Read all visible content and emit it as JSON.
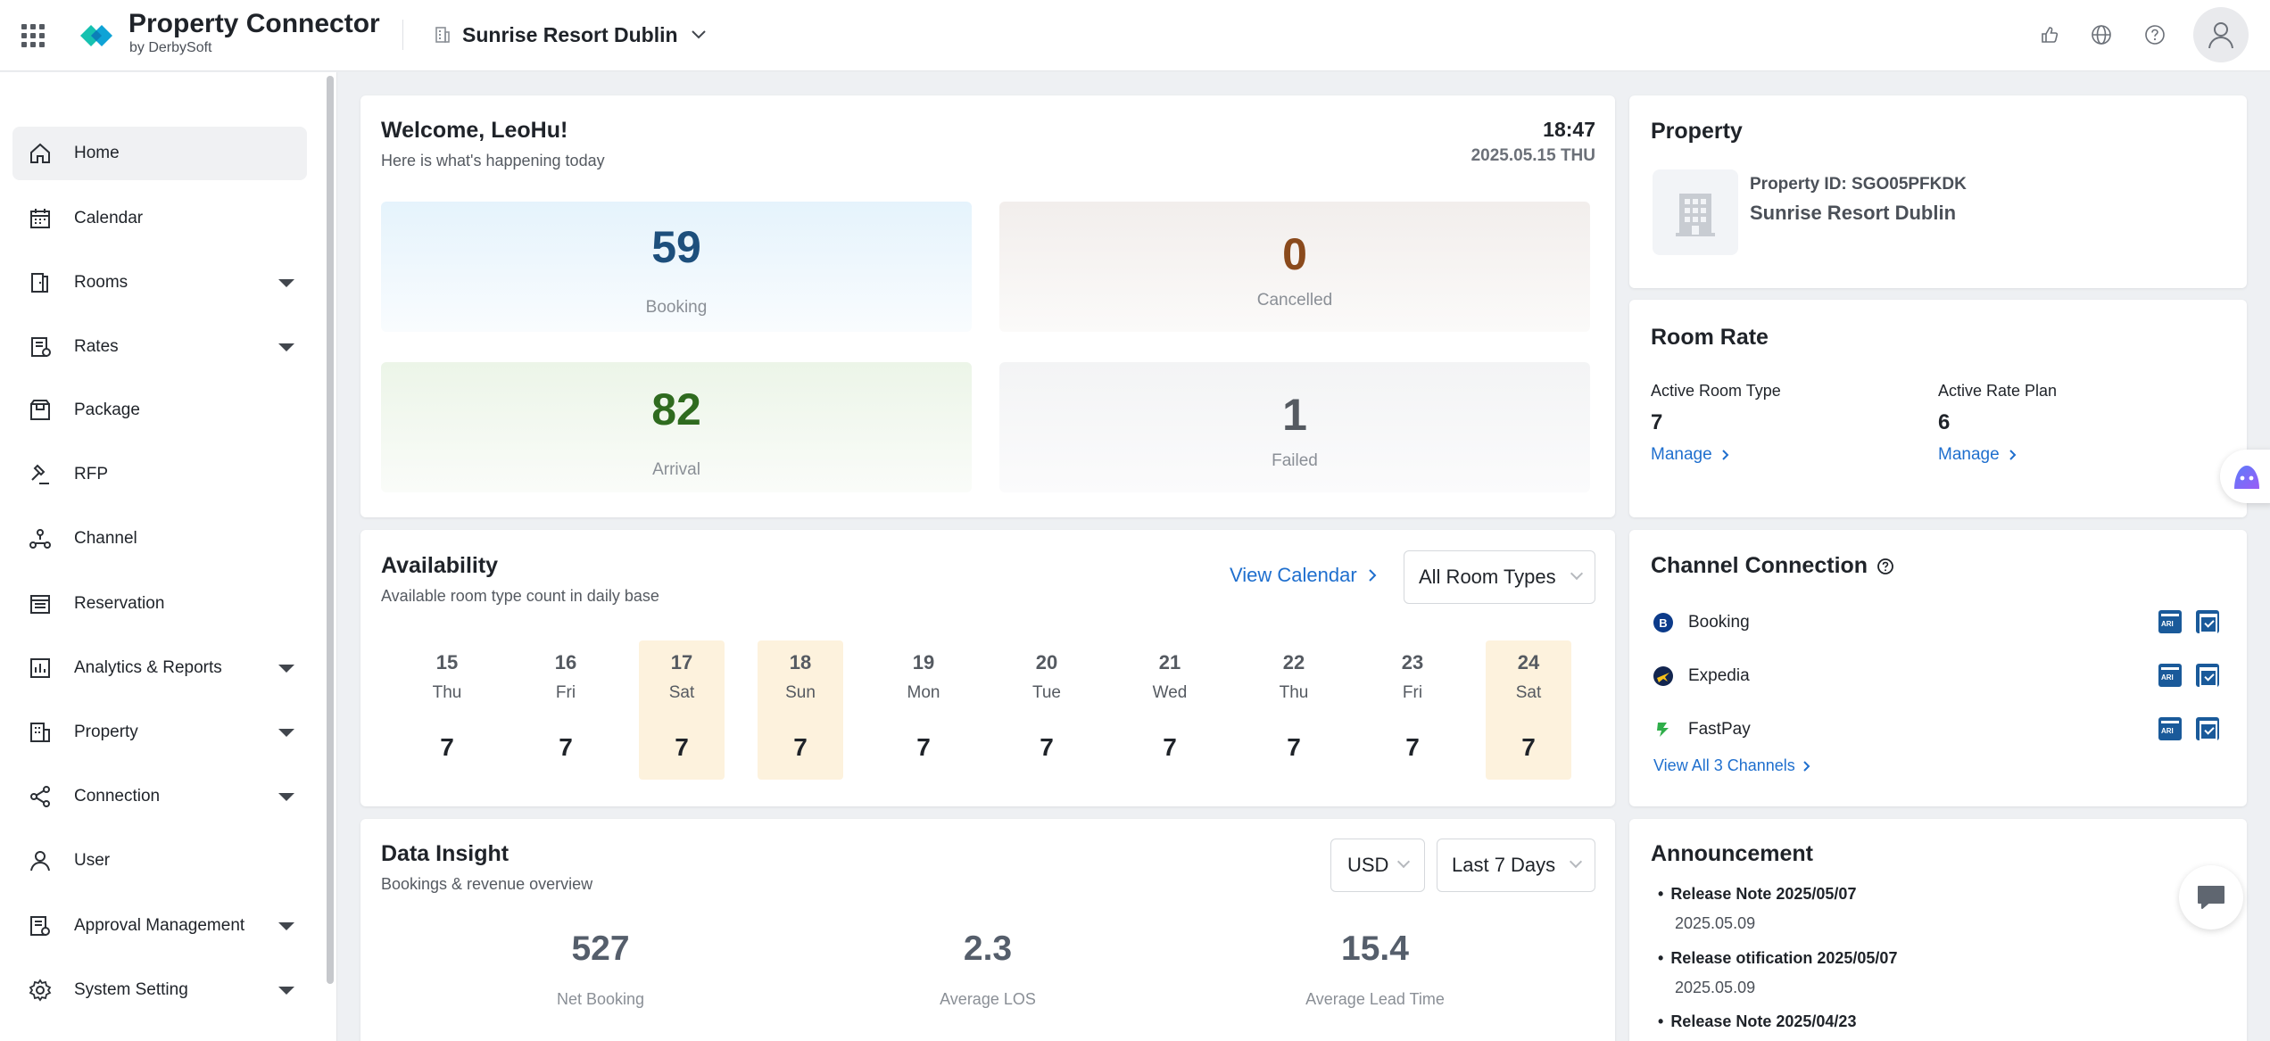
{
  "header": {
    "brand_title": "Property Connector",
    "brand_sub": "by DerbySoft",
    "property_name": "Sunrise Resort Dublin"
  },
  "sidebar": {
    "items": [
      {
        "label": "Home",
        "icon": "home-icon"
      },
      {
        "label": "Calendar",
        "icon": "calendar-icon"
      },
      {
        "label": "Rooms",
        "icon": "door-icon"
      },
      {
        "label": "Rates",
        "icon": "rates-icon"
      },
      {
        "label": "Package",
        "icon": "package-icon"
      },
      {
        "label": "RFP",
        "icon": "gavel-icon"
      },
      {
        "label": "Channel",
        "icon": "channel-icon"
      },
      {
        "label": "Reservation",
        "icon": "reservation-icon"
      },
      {
        "label": "Analytics & Reports",
        "icon": "chart-icon"
      },
      {
        "label": "Property",
        "icon": "building-icon"
      },
      {
        "label": "Connection",
        "icon": "share-icon"
      },
      {
        "label": "User",
        "icon": "user-icon"
      },
      {
        "label": "Approval Management",
        "icon": "approval-icon"
      },
      {
        "label": "System Setting",
        "icon": "gear-icon"
      }
    ]
  },
  "welcome": {
    "title": "Welcome, LeoHu!",
    "subtitle": "Here is what's happening today",
    "time": "18:47",
    "date": "2025.05.15 THU",
    "stats": [
      {
        "value": "59",
        "label": "Booking"
      },
      {
        "value": "0",
        "label": "Cancelled"
      },
      {
        "value": "82",
        "label": "Arrival"
      },
      {
        "value": "1",
        "label": "Failed"
      }
    ]
  },
  "availability": {
    "title": "Availability",
    "subtitle": "Available room type count in daily base",
    "view_calendar": "View Calendar",
    "room_filter": "All Room Types",
    "days": [
      {
        "date": "15",
        "weekday": "Thu",
        "count": "7"
      },
      {
        "date": "16",
        "weekday": "Fri",
        "count": "7"
      },
      {
        "date": "17",
        "weekday": "Sat",
        "count": "7"
      },
      {
        "date": "18",
        "weekday": "Sun",
        "count": "7"
      },
      {
        "date": "19",
        "weekday": "Mon",
        "count": "7"
      },
      {
        "date": "20",
        "weekday": "Tue",
        "count": "7"
      },
      {
        "date": "21",
        "weekday": "Wed",
        "count": "7"
      },
      {
        "date": "22",
        "weekday": "Thu",
        "count": "7"
      },
      {
        "date": "23",
        "weekday": "Fri",
        "count": "7"
      },
      {
        "date": "24",
        "weekday": "Sat",
        "count": "7"
      }
    ]
  },
  "insight": {
    "title": "Data Insight",
    "subtitle": "Bookings & revenue overview",
    "currency": "USD",
    "period": "Last 7 Days",
    "metrics": [
      {
        "value": "527",
        "label": "Net Booking"
      },
      {
        "value": "2.3",
        "label": "Average LOS"
      },
      {
        "value": "15.4",
        "label": "Average Lead Time"
      }
    ]
  },
  "property": {
    "title": "Property",
    "id_text": "Property ID: SGO05PFKDK",
    "name": "Sunrise Resort Dublin"
  },
  "room_rate": {
    "title": "Room Rate",
    "room_type_label": "Active Room Type",
    "room_type_value": "7",
    "rate_plan_label": "Active Rate Plan",
    "rate_plan_value": "6",
    "manage": "Manage"
  },
  "channels": {
    "title": "Channel Connection",
    "items": [
      {
        "name": "Booking",
        "icon": "booking-logo-icon"
      },
      {
        "name": "Expedia",
        "icon": "expedia-logo-icon"
      },
      {
        "name": "FastPay",
        "icon": "fastpay-logo-icon"
      }
    ],
    "view_all": "View All 3 Channels"
  },
  "announcement": {
    "title": "Announcement",
    "items": [
      {
        "title": "Release Note 2025/05/07",
        "date": "2025.05.09"
      },
      {
        "title": "Release otification 2025/05/07",
        "date": "2025.05.09"
      },
      {
        "title": "Release Note 2025/04/23",
        "date": ""
      }
    ]
  },
  "colors": {
    "booking": "#1d4f7c",
    "cancelled": "#8a4a1c",
    "arrival": "#2f6b1f",
    "failed": "#555a61",
    "link": "#1f6fce",
    "weekend": "#fdf2dd"
  }
}
